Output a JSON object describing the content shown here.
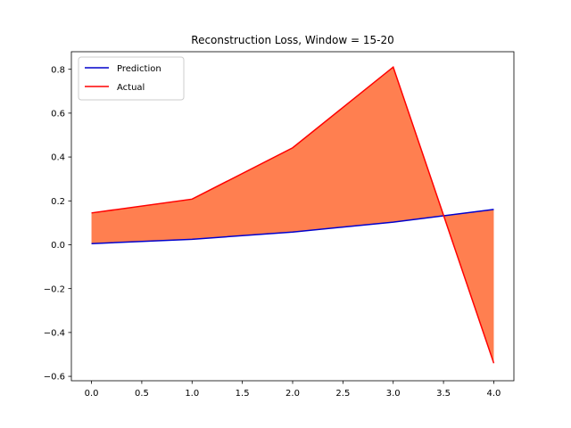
{
  "chart_data": {
    "type": "line",
    "title": "Reconstruction Loss, Window = 15-20",
    "xlabel": "",
    "ylabel": "",
    "x": [
      0,
      1,
      2,
      3,
      4
    ],
    "xlim": [
      -0.2,
      4.2
    ],
    "ylim": [
      -0.62,
      0.88
    ],
    "xticks": [
      0.0,
      0.5,
      1.0,
      1.5,
      2.0,
      2.5,
      3.0,
      3.5,
      4.0
    ],
    "yticks": [
      -0.6,
      -0.4,
      -0.2,
      0.0,
      0.2,
      0.4,
      0.6,
      0.8
    ],
    "xtick_labels": [
      "0.0",
      "0.5",
      "1.0",
      "1.5",
      "2.0",
      "2.5",
      "3.0",
      "3.5",
      "4.0"
    ],
    "ytick_labels": [
      "−0.6",
      "−0.4",
      "−0.2",
      "0.0",
      "0.2",
      "0.4",
      "0.6",
      "0.8"
    ],
    "series": [
      {
        "name": "Prediction",
        "color": "#0000cc",
        "values": [
          0.005,
          0.025,
          0.058,
          0.103,
          0.161
        ]
      },
      {
        "name": "Actual",
        "color": "#ff0000",
        "values": [
          0.145,
          0.208,
          0.442,
          0.81,
          -0.54
        ]
      }
    ],
    "fill_between": {
      "series": [
        "Prediction",
        "Actual"
      ],
      "color": "#ff7f50"
    },
    "grid": false,
    "legend_position": "top-left"
  }
}
